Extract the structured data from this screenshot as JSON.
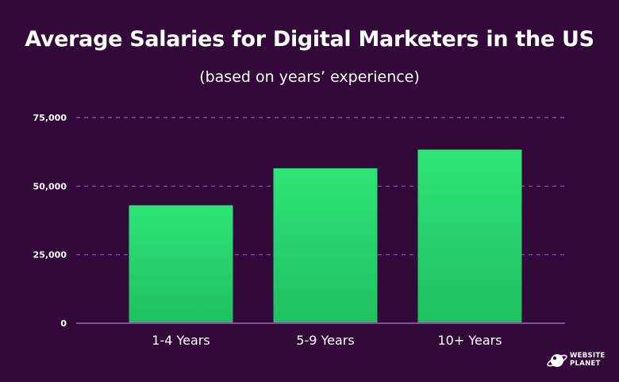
{
  "chart_data": {
    "type": "bar",
    "title": "Average Salaries for Digital Marketers in the US",
    "subtitle": "(based on years’ experience)",
    "categories": [
      "1-4 Years",
      "5-9 Years",
      "10+ Years"
    ],
    "values": [
      43000,
      56500,
      63300
    ],
    "ylim": [
      0,
      75000
    ],
    "yticks": [
      0,
      25000,
      50000,
      75000
    ],
    "ytick_labels": [
      "0",
      "25,000",
      "50,000",
      "75,000"
    ],
    "grid": true,
    "xlabel": "",
    "ylabel": ""
  },
  "colors": {
    "background": "#33093a",
    "bar_top": "#2ee577",
    "bar_bottom": "#20bf62",
    "grid": "#8e5aa5",
    "axis": "#9b6ab0"
  },
  "logo": {
    "line1": "WEBSITE",
    "line2": "PLANET",
    "icon": "planet-logo-icon"
  }
}
